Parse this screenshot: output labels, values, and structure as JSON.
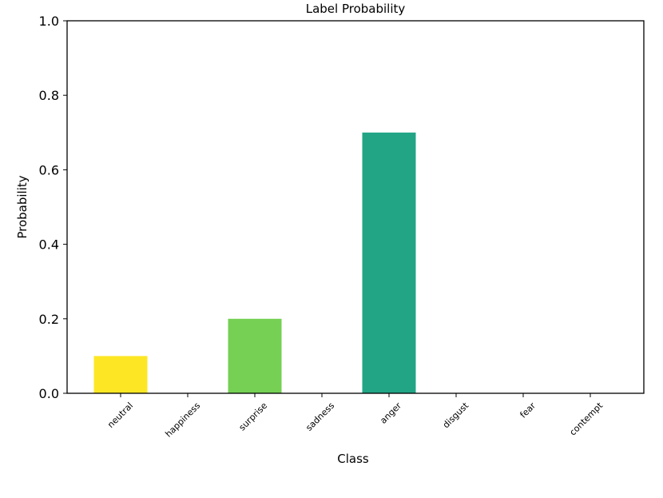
{
  "chart_data": {
    "type": "bar",
    "title": "Label Probability",
    "xlabel": "Class",
    "ylabel": "Probability",
    "categories": [
      "neutral",
      "happiness",
      "surprise",
      "sadness",
      "anger",
      "disgust",
      "fear",
      "contempt"
    ],
    "values": [
      0.1,
      0.0,
      0.2,
      0.0,
      0.7,
      0.0,
      0.0,
      0.0
    ],
    "colors": [
      "#fde725",
      "#a0da39",
      "#75d054",
      "#4ac16d",
      "#21a585",
      "#1f968b",
      "#2a788e",
      "#414487"
    ],
    "ylim": [
      0,
      1.0
    ],
    "yticks": [
      "0.0",
      "0.2",
      "0.4",
      "0.6",
      "0.8",
      "1.0"
    ],
    "ytick_values": [
      0.0,
      0.2,
      0.4,
      0.6,
      0.8,
      1.0
    ],
    "grid": false,
    "legend": "none"
  }
}
